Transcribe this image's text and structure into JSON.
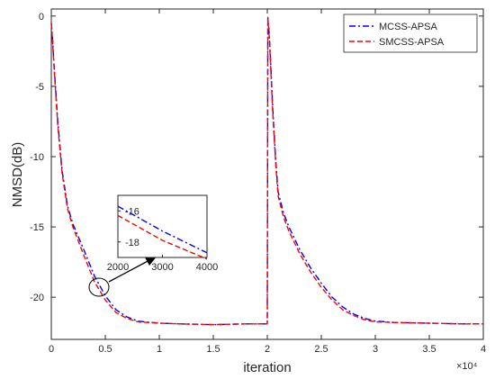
{
  "chart_data": {
    "type": "line",
    "title": "",
    "xlabel": "iteration",
    "ylabel": "NMSD(dB)",
    "x_multiplier_label": "×10⁴",
    "xlim": [
      0,
      4
    ],
    "ylim": [
      -23,
      0.5
    ],
    "xticks": [
      0,
      0.5,
      1,
      1.5,
      2,
      2.5,
      3,
      3.5,
      4
    ],
    "xtick_labels": [
      "0",
      "0.5",
      "1",
      "1.5",
      "2",
      "2.5",
      "3",
      "3.5",
      "4"
    ],
    "yticks": [
      0,
      -5,
      -10,
      -15,
      -20
    ],
    "ytick_labels": [
      "0",
      "-5",
      "-10",
      "-15",
      "-20"
    ],
    "grid": false,
    "legend_position": "top-right",
    "series": [
      {
        "name": "MCSS-APSA",
        "color": "#0000ff",
        "style": "dash-dot",
        "x": [
          0,
          0.01,
          0.03,
          0.06,
          0.1,
          0.15,
          0.2,
          0.3,
          0.4,
          0.5,
          0.6,
          0.7,
          0.8,
          1.0,
          1.2,
          1.5,
          1.8,
          1.99,
          2.0,
          2.005,
          2.02,
          2.05,
          2.08,
          2.1,
          2.15,
          2.2,
          2.3,
          2.4,
          2.5,
          2.6,
          2.7,
          2.8,
          2.9,
          3.0,
          3.2,
          3.5,
          3.8,
          4.0
        ],
        "y": [
          -0.5,
          -1.5,
          -4.0,
          -7.5,
          -11.0,
          -13.5,
          -14.8,
          -16.6,
          -18.5,
          -19.9,
          -20.9,
          -21.4,
          -21.7,
          -21.85,
          -21.9,
          -21.95,
          -21.9,
          -21.9,
          -21.9,
          -0.1,
          -1.5,
          -6.5,
          -10.5,
          -12.5,
          -14.0,
          -15.0,
          -16.6,
          -17.9,
          -19.0,
          -20.0,
          -20.7,
          -21.2,
          -21.5,
          -21.7,
          -21.8,
          -21.85,
          -21.9,
          -21.9
        ]
      },
      {
        "name": "SMCSS-APSA",
        "color": "#ff0000",
        "style": "dashed",
        "x": [
          0,
          0.01,
          0.03,
          0.06,
          0.1,
          0.15,
          0.2,
          0.3,
          0.4,
          0.5,
          0.6,
          0.7,
          0.8,
          1.0,
          1.2,
          1.5,
          1.8,
          1.99,
          2.0,
          2.005,
          2.02,
          2.05,
          2.08,
          2.1,
          2.15,
          2.2,
          2.3,
          2.4,
          2.5,
          2.6,
          2.7,
          2.8,
          2.9,
          3.0,
          3.2,
          3.5,
          3.8,
          4.0
        ],
        "y": [
          -0.5,
          -1.6,
          -4.2,
          -7.8,
          -11.2,
          -13.7,
          -15.0,
          -17.0,
          -18.9,
          -20.2,
          -21.1,
          -21.5,
          -21.75,
          -21.85,
          -21.9,
          -21.95,
          -21.9,
          -21.9,
          -21.9,
          -0.1,
          -1.7,
          -6.8,
          -10.8,
          -12.8,
          -14.3,
          -15.3,
          -16.9,
          -18.2,
          -19.3,
          -20.2,
          -20.9,
          -21.3,
          -21.6,
          -21.75,
          -21.8,
          -21.85,
          -21.9,
          -21.9
        ]
      }
    ],
    "inset": {
      "xlim": [
        2000,
        4000
      ],
      "ylim": [
        -19,
        -15
      ],
      "xticks": [
        2000,
        3000,
        4000
      ],
      "xtick_labels": [
        "2000",
        "3000",
        "4000"
      ],
      "yticks": [
        -16,
        -18
      ],
      "ytick_labels": [
        "-16",
        "-18"
      ],
      "series": [
        {
          "name": "MCSS-APSA",
          "x": [
            2000,
            2500,
            3000,
            3500,
            4000
          ],
          "y": [
            -15.7,
            -16.5,
            -17.3,
            -18.0,
            -18.7
          ]
        },
        {
          "name": "SMCSS-APSA",
          "x": [
            2000,
            2500,
            3000,
            3500,
            4000
          ],
          "y": [
            -16.3,
            -17.1,
            -17.9,
            -18.5,
            -19.1
          ]
        }
      ]
    }
  }
}
